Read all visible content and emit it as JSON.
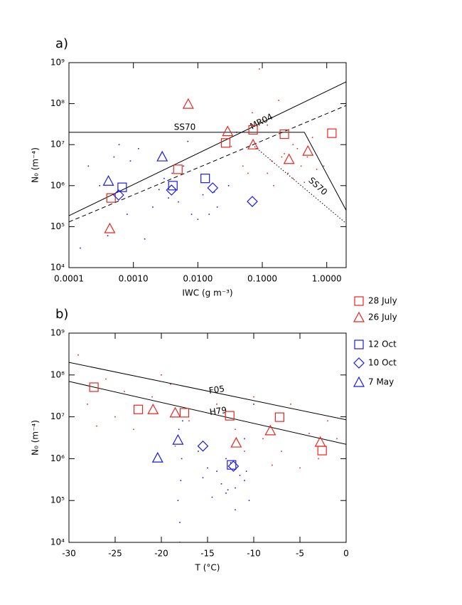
{
  "chart_data": [
    {
      "type": "scatter",
      "panel_label": "a)",
      "xlabel": "IWC (g m⁻³)",
      "ylabel": "N₀ (m⁻⁴)",
      "xscale": "log",
      "yscale": "log",
      "xlim": [
        0.0001,
        2
      ],
      "ylim": [
        10000,
        1000000000
      ],
      "xticks": [
        {
          "value": 0.0001,
          "label": "0.0001"
        },
        {
          "value": 0.001,
          "label": "0.0010"
        },
        {
          "value": 0.01,
          "label": "0.0100"
        },
        {
          "value": 0.1,
          "label": "0.1000"
        },
        {
          "value": 1,
          "label": "1.0000"
        }
      ],
      "yticks": [
        {
          "value": 10000,
          "label": "10⁴"
        },
        {
          "value": 100000,
          "label": "10⁵"
        },
        {
          "value": 1000000,
          "label": "10⁶"
        },
        {
          "value": 10000000,
          "label": "10⁷"
        },
        {
          "value": 100000000,
          "label": "10⁸"
        },
        {
          "value": 1000000000,
          "label": "10⁹"
        }
      ],
      "legend": "right",
      "series": [
        {
          "name": "28 July",
          "color": "#e8261e",
          "marker": "square",
          "x": [
            0.00045,
            0.0049,
            0.027,
            0.072,
            0.22,
            1.2
          ],
          "values": [
            500000,
            2500000,
            11000000,
            23000000,
            18000000,
            19000000
          ]
        },
        {
          "name": "26 July",
          "color": "#e8261e",
          "marker": "triangle",
          "x": [
            0.00043,
            0.0071,
            0.029,
            0.072,
            0.26,
            0.51
          ],
          "values": [
            90000,
            98000000,
            21000000,
            10000000,
            4400000,
            7000000
          ]
        },
        {
          "name": "12 Oct",
          "color": "#1a1ae0",
          "marker": "square",
          "x": [
            0.00067,
            0.0041,
            0.013
          ],
          "values": [
            910000,
            1000000,
            1500000
          ]
        },
        {
          "name": "10 Oct",
          "color": "#1a1ae0",
          "marker": "diamond",
          "x": [
            0.00059,
            0.0039,
            0.017,
            0.07
          ],
          "values": [
            590000,
            780000,
            880000,
            410000
          ]
        },
        {
          "name": "7 May",
          "color": "#1a1ae0",
          "marker": "triangle",
          "x": [
            0.00041,
            0.0028
          ],
          "values": [
            1300000,
            5100000
          ]
        }
      ],
      "dots": [
        {
          "color": "#e8261e",
          "x": [
            0.05,
            0.08,
            0.12,
            0.2,
            0.3,
            0.4,
            0.6,
            0.1,
            0.15,
            0.25,
            0.07,
            0.5,
            0.9,
            0.04,
            0.18,
            0.35,
            0.06,
            0.12,
            0.22,
            0.3,
            0.09,
            0.14,
            0.45,
            0.033,
            0.7
          ],
          "values": [
            3000000,
            8000000,
            2000000,
            5000000,
            10000000,
            3000000,
            15000000,
            40000000,
            1000000,
            2000000,
            60000000,
            5000000,
            3000000,
            20000000,
            120000000,
            8000000,
            2000000,
            30000000,
            6000000,
            1500000,
            700000000,
            4000000,
            1200000,
            9000000,
            2500000
          ]
        },
        {
          "color": "#1a1ae0",
          "x": [
            0.0002,
            0.0003,
            0.0005,
            0.0008,
            0.0012,
            0.002,
            0.003,
            0.005,
            0.008,
            0.012,
            0.02,
            0.03,
            0.0015,
            0.004,
            0.0006,
            0.01,
            0.0025,
            0.0004,
            0.006,
            0.015,
            0.00015,
            0.0009,
            0.0035,
            0.007,
            0.018
          ],
          "values": [
            3000000,
            1000000,
            5000000,
            200000,
            8000000,
            300000,
            1500000,
            400000,
            200000,
            600000,
            300000,
            1000000,
            50000,
            2000000,
            10000000,
            150000,
            800000,
            60000,
            3000000,
            200000,
            30000,
            4000000,
            500000,
            12000000,
            700000
          ]
        }
      ],
      "lines": [
        {
          "label": "SS70",
          "style": "solid",
          "x": [
            0.0001,
            0.45,
            2
          ],
          "values": [
            20000000,
            20000000,
            250000
          ]
        },
        {
          "label": "MR04",
          "style": "solid",
          "x": [
            0.0001,
            2
          ],
          "values": [
            185000,
            340000000
          ]
        },
        {
          "style": "dashed",
          "x": [
            0.0001,
            2
          ],
          "values": [
            130000,
            90000000
          ]
        },
        {
          "style": "dotted",
          "x": [
            0.07,
            2
          ],
          "values": [
            10000000,
            120000
          ]
        }
      ]
    },
    {
      "type": "scatter",
      "panel_label": "b)",
      "xlabel": "T (°C)",
      "ylabel": "N₀ (m⁻⁴)",
      "xscale": "linear",
      "yscale": "log",
      "xlim": [
        -30,
        0
      ],
      "ylim": [
        10000,
        1000000000
      ],
      "xticks": [
        -30,
        -25,
        -20,
        -15,
        -10,
        -5,
        0
      ],
      "yticks": [
        {
          "value": 10000,
          "label": "10⁴"
        },
        {
          "value": 100000,
          "label": "10⁵"
        },
        {
          "value": 1000000,
          "label": "10⁶"
        },
        {
          "value": 10000000,
          "label": "10⁷"
        },
        {
          "value": 100000000,
          "label": "10⁸"
        },
        {
          "value": 1000000000,
          "label": "10⁹"
        }
      ],
      "series": [
        {
          "name": "28 July",
          "color": "#e8261e",
          "marker": "square",
          "x": [
            -27.3,
            -22.5,
            -17.5,
            -12.6,
            -7.2,
            -2.6
          ],
          "values": [
            51000000,
            15000000,
            12500000,
            10600000,
            9800000,
            1560000
          ]
        },
        {
          "name": "26 July",
          "color": "#e8261e",
          "marker": "triangle",
          "x": [
            -20.9,
            -18.5,
            -11.9,
            -8.2,
            -2.8
          ],
          "values": [
            15000000,
            12500000,
            2400000,
            4700000,
            2500000
          ]
        },
        {
          "name": "12 Oct",
          "color": "#1a1ae0",
          "marker": "square",
          "x": [
            -12.4
          ],
          "values": [
            710000
          ]
        },
        {
          "name": "10 Oct",
          "color": "#1a1ae0",
          "marker": "diamond",
          "x": [
            -15.5,
            -12.2
          ],
          "values": [
            2000000,
            660000
          ]
        },
        {
          "name": "7 May",
          "color": "#1a1ae0",
          "marker": "triangle",
          "x": [
            -20.4,
            -18.2
          ],
          "values": [
            1050000,
            2800000
          ]
        }
      ],
      "dots": [
        {
          "color": "#e8261e",
          "x": [
            -29,
            -28,
            -26,
            -25,
            -24,
            -23,
            -21,
            -19,
            -18.5,
            -17,
            -14,
            -12,
            -10,
            -9,
            -7,
            -6,
            -5,
            -4,
            -3,
            -2,
            -1,
            -27,
            -20,
            -8,
            -11
          ],
          "values": [
            300000000,
            20000000,
            80000000,
            10000000,
            40000000,
            5000000,
            30000000,
            60000000,
            2000000,
            8000000,
            20000000,
            5000000,
            30000000,
            3000000,
            1500000,
            20000000,
            600000,
            4000000,
            1000000,
            8000000,
            3000000,
            6000000,
            100000000,
            700000,
            1500000
          ]
        },
        {
          "color": "#1a1ae0",
          "x": [
            -18,
            -18.2,
            -17.8,
            -18.1,
            -17.9,
            -12,
            -11.5,
            -13,
            -14,
            -10.5,
            -11,
            -12.5,
            -13.5,
            -15,
            -16,
            -10,
            -12,
            -11,
            -14.5,
            -13,
            -18,
            -17.7,
            -10.8,
            -12.8,
            -15.5
          ],
          "values": [
            10000,
            100000,
            1000000,
            5000000,
            300000,
            200000,
            400000,
            150000,
            500000,
            100000,
            3000000,
            800000,
            250000,
            600000,
            1500000,
            20000000,
            60000,
            300000,
            120000,
            1000000,
            30000,
            8000000,
            500000,
            180000,
            350000
          ]
        }
      ],
      "lines": [
        {
          "label": "F05",
          "style": "solid",
          "x": [
            -30,
            0
          ],
          "values": [
            200000000,
            8500000
          ]
        },
        {
          "label": "H79",
          "style": "solid",
          "x": [
            -30,
            0
          ],
          "values": [
            70000000,
            2200000
          ]
        }
      ]
    }
  ]
}
